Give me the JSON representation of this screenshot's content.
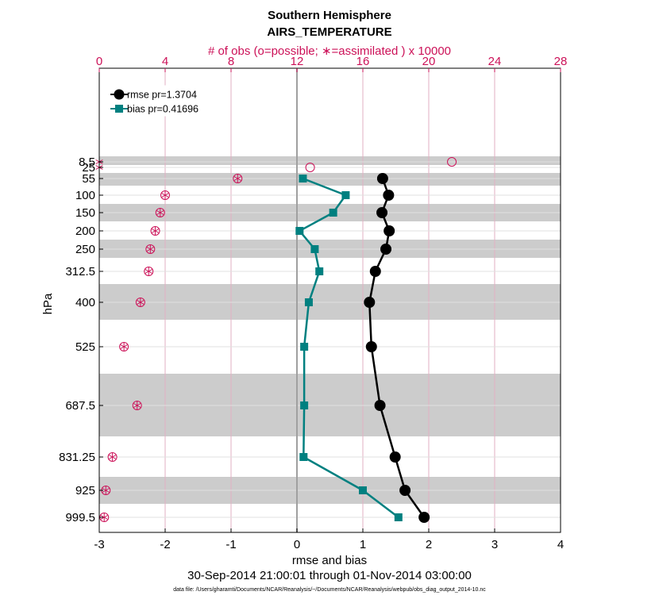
{
  "chart_data": {
    "type": "line",
    "title": "Southern Hemisphere",
    "subtitle": "AIRS_TEMPERATURE",
    "top_axis_label": "# of obs (o=possible; ∗=assimilated ) x 10000",
    "xlabel": "rmse and bias",
    "ylabel": "hPa",
    "date_range": "30-Sep-2014 21:00:01 through 01-Nov-2014 03:00:00",
    "footnote": "data file: /Users/gharamti/Documents/NCAR/Reanalysis/~/Documents/NCAR/Reanalysis/webpub/obs_diag_output_2014-10.nc",
    "xlim": [
      -3,
      4
    ],
    "x_ticks": [
      "-3",
      "-2",
      "-1",
      "0",
      "1",
      "2",
      "3",
      "4"
    ],
    "top_xlim": [
      0,
      28
    ],
    "top_ticks": [
      "0",
      "4",
      "8",
      "12",
      "16",
      "20",
      "24",
      "28"
    ],
    "y_reversed": true,
    "levels": [
      8.5,
      25,
      55,
      100,
      150,
      200,
      250,
      312.5,
      400,
      525,
      687.5,
      831.25,
      925,
      999.5
    ],
    "level_labels": [
      "8.5",
      "25",
      "55",
      "100",
      "150",
      "200",
      "250",
      "312.5",
      "400",
      "525",
      "687.5",
      "831.25",
      "925",
      "999.5"
    ],
    "shaded_bands": [
      [
        5,
        12
      ],
      [
        40,
        70
      ],
      [
        125,
        175
      ],
      [
        225,
        275
      ],
      [
        350,
        450
      ],
      [
        600,
        775
      ],
      [
        875,
        975
      ]
    ],
    "series": [
      {
        "name": "rmse",
        "legend": "rmse pr=1.3704",
        "color": "#000000",
        "marker": "circle",
        "levels": [
          55,
          100,
          150,
          200,
          250,
          312.5,
          400,
          525,
          687.5,
          831.25,
          925,
          999.5
        ],
        "values": [
          1.3,
          1.39,
          1.29,
          1.4,
          1.35,
          1.19,
          1.1,
          1.13,
          1.26,
          1.49,
          1.64,
          1.93
        ]
      },
      {
        "name": "bias",
        "legend": "bias pr=0.41696",
        "color": "#008080",
        "marker": "square",
        "levels": [
          55,
          100,
          150,
          200,
          250,
          312.5,
          400,
          525,
          687.5,
          831.25,
          925,
          999.5
        ],
        "values": [
          0.09,
          0.74,
          0.55,
          0.04,
          0.27,
          0.34,
          0.18,
          0.11,
          0.11,
          0.1,
          1.0,
          1.54
        ]
      }
    ],
    "obs_possible": {
      "levels": [
        8.5,
        25,
        55,
        100,
        150,
        200,
        250,
        312.5,
        400,
        525,
        687.5,
        831.25,
        925,
        999.5
      ],
      "values": [
        21.4,
        12.8,
        8.4,
        4.0,
        3.7,
        3.4,
        3.1,
        3.0,
        2.5,
        1.5,
        2.3,
        0.8,
        0.4,
        0.3
      ]
    },
    "obs_assimilated": {
      "levels": [
        8.5,
        25,
        55,
        100,
        150,
        200,
        250,
        312.5,
        400,
        525,
        687.5,
        831.25,
        925,
        999.5
      ],
      "values": [
        0.0,
        0.0,
        8.4,
        4.0,
        3.7,
        3.4,
        3.1,
        3.0,
        2.5,
        1.5,
        2.3,
        0.8,
        0.4,
        0.3
      ]
    },
    "colors": {
      "top_axis": "#cc1158",
      "grid": "#cccccc",
      "band": "#cccccc",
      "zero_line": "#a0a0a0"
    }
  }
}
